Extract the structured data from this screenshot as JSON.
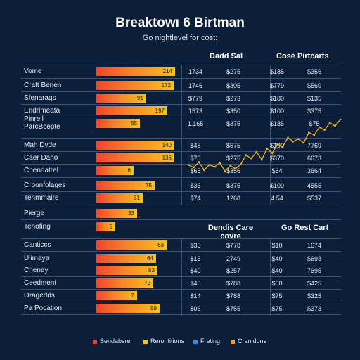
{
  "title": "Breaktowı 6 Birtman",
  "subtitle": "Go nightlevel for cost:",
  "col_headers": {
    "top_left": "Dadd Sal",
    "top_right": "Cosė Pirtcarts",
    "bottom_left": "Dendis Care\ncovre",
    "bottom_right": "Go Rest Cart"
  },
  "colors": {
    "background": "#0b1f3a",
    "bar_start": "#f2442b",
    "bar_end": "#f7c21a",
    "trend_line": "#f7b21a",
    "grid": "#3b5275"
  },
  "chart_data": {
    "type": "bar",
    "title": "Breaktowı 6 Birtman",
    "subtitle": "Go nightlevel for cost:",
    "orientation": "horizontal",
    "rows": [
      {
        "label": "Vome",
        "bar_label": "214",
        "value": 1.0,
        "cells": [
          "1734",
          "$275",
          "$185",
          "$356"
        ]
      },
      {
        "label": "Cratt Benen",
        "bar_label": "172",
        "value": 0.98,
        "cells": [
          "1746",
          "$305",
          "$779",
          "$560"
        ]
      },
      {
        "label": "Sfenarags",
        "bar_label": "91",
        "value": 0.63,
        "cells": [
          "$779",
          "$273",
          "$180",
          "$135"
        ]
      },
      {
        "label": "Endrimeata",
        "bar_label": "197",
        "value": 0.9,
        "cells": [
          "1573",
          "$350",
          "$100",
          "$375"
        ]
      },
      {
        "label": "Pinrell\nParcBcepte",
        "bar_label": "55",
        "value": 0.55,
        "cells": [
          "1.165",
          "$375",
          "$185",
          "$75"
        ]
      },
      {
        "label": "Mah Dyde",
        "bar_label": "140",
        "value": 0.99,
        "cells": [
          "$48",
          "$575",
          "$190",
          "7769"
        ]
      },
      {
        "label": "Caer Daho",
        "bar_label": "136",
        "value": 0.99,
        "cells": [
          "$70",
          "$275",
          "$370",
          "6673"
        ]
      },
      {
        "label": "Chendatrel",
        "bar_label": "6",
        "value": 0.47,
        "cells": [
          "$65",
          "$356",
          "$64",
          "3664"
        ]
      },
      {
        "label": "Croonfolages",
        "bar_label": "75",
        "value": 0.74,
        "cells": [
          "$35",
          "$375",
          "$100",
          "4555"
        ]
      },
      {
        "label": "Tenmmaire",
        "bar_label": "31",
        "value": 0.59,
        "cells": [
          "$74",
          "1268",
          "4.54",
          "$537"
        ]
      },
      {
        "label": "Pierge",
        "bar_label": "33",
        "value": 0.52,
        "cells": []
      },
      {
        "label": "Tenofing",
        "bar_label": "5",
        "value": 0.24,
        "cells": []
      },
      {
        "label": "Canticcs",
        "bar_label": "63",
        "value": 0.89,
        "cells": [
          "$35",
          "$778",
          "$10",
          "1674"
        ]
      },
      {
        "label": "Ulimaya",
        "bar_label": "64",
        "value": 0.76,
        "cells": [
          "$15",
          "2749",
          "$40",
          "$693"
        ]
      },
      {
        "label": "Cheney",
        "bar_label": "53",
        "value": 0.78,
        "cells": [
          "$40",
          "$257",
          "$40",
          "7695"
        ]
      },
      {
        "label": "Ceedment",
        "bar_label": "72",
        "value": 0.72,
        "cells": [
          "$45",
          "$788",
          "$60",
          "$425"
        ]
      },
      {
        "label": "Oragedds",
        "bar_label": "7",
        "value": 0.52,
        "cells": [
          "$14",
          "$788",
          "$75",
          "$325"
        ]
      },
      {
        "label": "Pa Pocation",
        "bar_label": "59",
        "value": 0.8,
        "cells": [
          "$06",
          "$755",
          "$75",
          "$373"
        ]
      }
    ],
    "trend_line": {
      "type": "line",
      "points": [
        0.3,
        0.26,
        0.34,
        0.22,
        0.3,
        0.27,
        0.33,
        0.2,
        0.29,
        0.24,
        0.31,
        0.45,
        0.4,
        0.5,
        0.38,
        0.55,
        0.48,
        0.62,
        0.58,
        0.72,
        0.66,
        0.7,
        0.64,
        0.8,
        0.76,
        0.88,
        0.84,
        0.95,
        0.9,
        1.0
      ]
    },
    "legend": [
      {
        "label": "Sendabsre",
        "color": "#e8412b"
      },
      {
        "label": "Rerontitions",
        "color": "#f7c21a"
      },
      {
        "label": "Freting",
        "color": "#2b8ee8"
      },
      {
        "label": "Cranidons",
        "color": "#f2a51a"
      }
    ]
  }
}
